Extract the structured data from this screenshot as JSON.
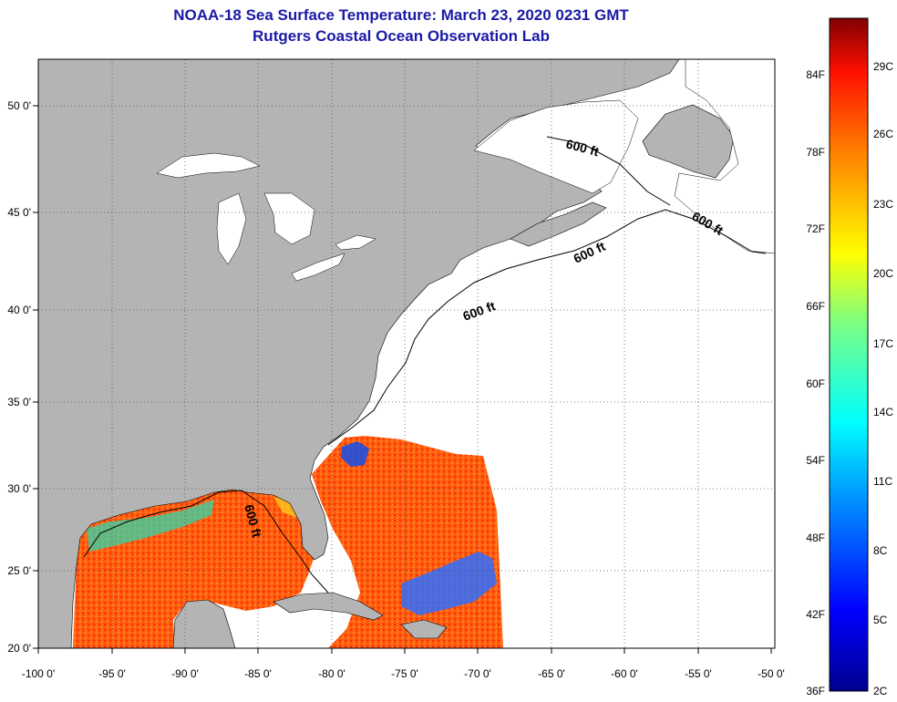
{
  "title_line1": "NOAA-18 Sea Surface Temperature:  March 23, 2020 0231 GMT",
  "title_line2": "Rutgers Coastal Ocean Observation Lab",
  "map": {
    "lat_labels": [
      "20 0'",
      "25 0'",
      "30 0'",
      "35 0'",
      "40 0'",
      "45 0'",
      "50 0'"
    ],
    "lon_labels": [
      "-100 0'",
      "-95 0'",
      "-90 0'",
      "-85 0'",
      "-80 0'",
      "-75 0'",
      "-70 0'",
      "-65 0'",
      "-60 0'",
      "-55 0'",
      "-50 0'"
    ],
    "contour_labels": [
      "600 ft",
      "600 ft",
      "600 ft",
      "600 ft",
      "600 ft"
    ]
  },
  "colorbar": {
    "f_labels": [
      "84F",
      "78F",
      "72F",
      "66F",
      "60F",
      "54F",
      "48F",
      "42F",
      "36F"
    ],
    "c_labels": [
      "29C",
      "26C",
      "23C",
      "20C",
      "17C",
      "14C",
      "11C",
      "8C",
      "5C",
      "2C"
    ]
  },
  "colors": {
    "land": "#b4b4b4",
    "no_data": "#ffffff",
    "grid": "#555555",
    "title": "#1a1aa6"
  }
}
